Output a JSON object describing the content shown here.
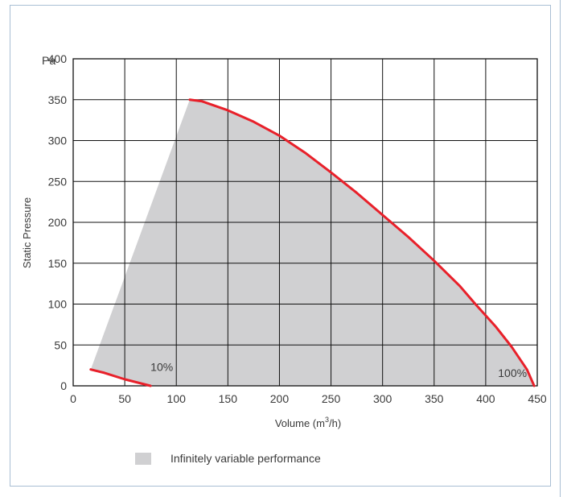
{
  "chart_data": {
    "type": "line",
    "x_unit_prefix": "Pa",
    "ylabel": "Static Pressure",
    "xlabel": "Volume (m³/h)",
    "xlim": [
      0,
      450
    ],
    "ylim": [
      0,
      400
    ],
    "x_ticks": [
      0,
      50,
      100,
      150,
      200,
      250,
      300,
      350,
      400,
      450
    ],
    "y_ticks": [
      0,
      50,
      100,
      150,
      200,
      250,
      300,
      350,
      400
    ],
    "grid": true,
    "region": {
      "name": "Infinitely variable performance",
      "color": "#d0d0d2",
      "polygon": [
        [
          17,
          20
        ],
        [
          113,
          350
        ],
        [
          125,
          348
        ],
        [
          150,
          337
        ],
        [
          175,
          323
        ],
        [
          200,
          306
        ],
        [
          225,
          285
        ],
        [
          250,
          261
        ],
        [
          275,
          236
        ],
        [
          300,
          209
        ],
        [
          325,
          182
        ],
        [
          350,
          153
        ],
        [
          375,
          122
        ],
        [
          390,
          100
        ],
        [
          410,
          72
        ],
        [
          425,
          48
        ],
        [
          440,
          20
        ],
        [
          447,
          0
        ],
        [
          75,
          0
        ],
        [
          50,
          8
        ],
        [
          30,
          16
        ]
      ]
    },
    "series": [
      {
        "name": "100%",
        "color": "#e8202a",
        "points": [
          [
            113,
            350
          ],
          [
            125,
            348
          ],
          [
            150,
            337
          ],
          [
            175,
            323
          ],
          [
            200,
            306
          ],
          [
            225,
            285
          ],
          [
            250,
            261
          ],
          [
            275,
            236
          ],
          [
            300,
            209
          ],
          [
            325,
            182
          ],
          [
            350,
            153
          ],
          [
            375,
            122
          ],
          [
            390,
            100
          ],
          [
            410,
            72
          ],
          [
            425,
            48
          ],
          [
            440,
            20
          ],
          [
            447,
            0
          ]
        ]
      },
      {
        "name": "10%",
        "color": "#e8202a",
        "points": [
          [
            17,
            20
          ],
          [
            30,
            16
          ],
          [
            50,
            8
          ],
          [
            75,
            0
          ]
        ]
      }
    ],
    "annotations": [
      {
        "text": "10%",
        "x": 75,
        "y": 18
      },
      {
        "text": "100%",
        "x": 412,
        "y": 11
      }
    ]
  },
  "legend": {
    "label": "Infinitely variable performance",
    "color": "#d0d0d2"
  }
}
